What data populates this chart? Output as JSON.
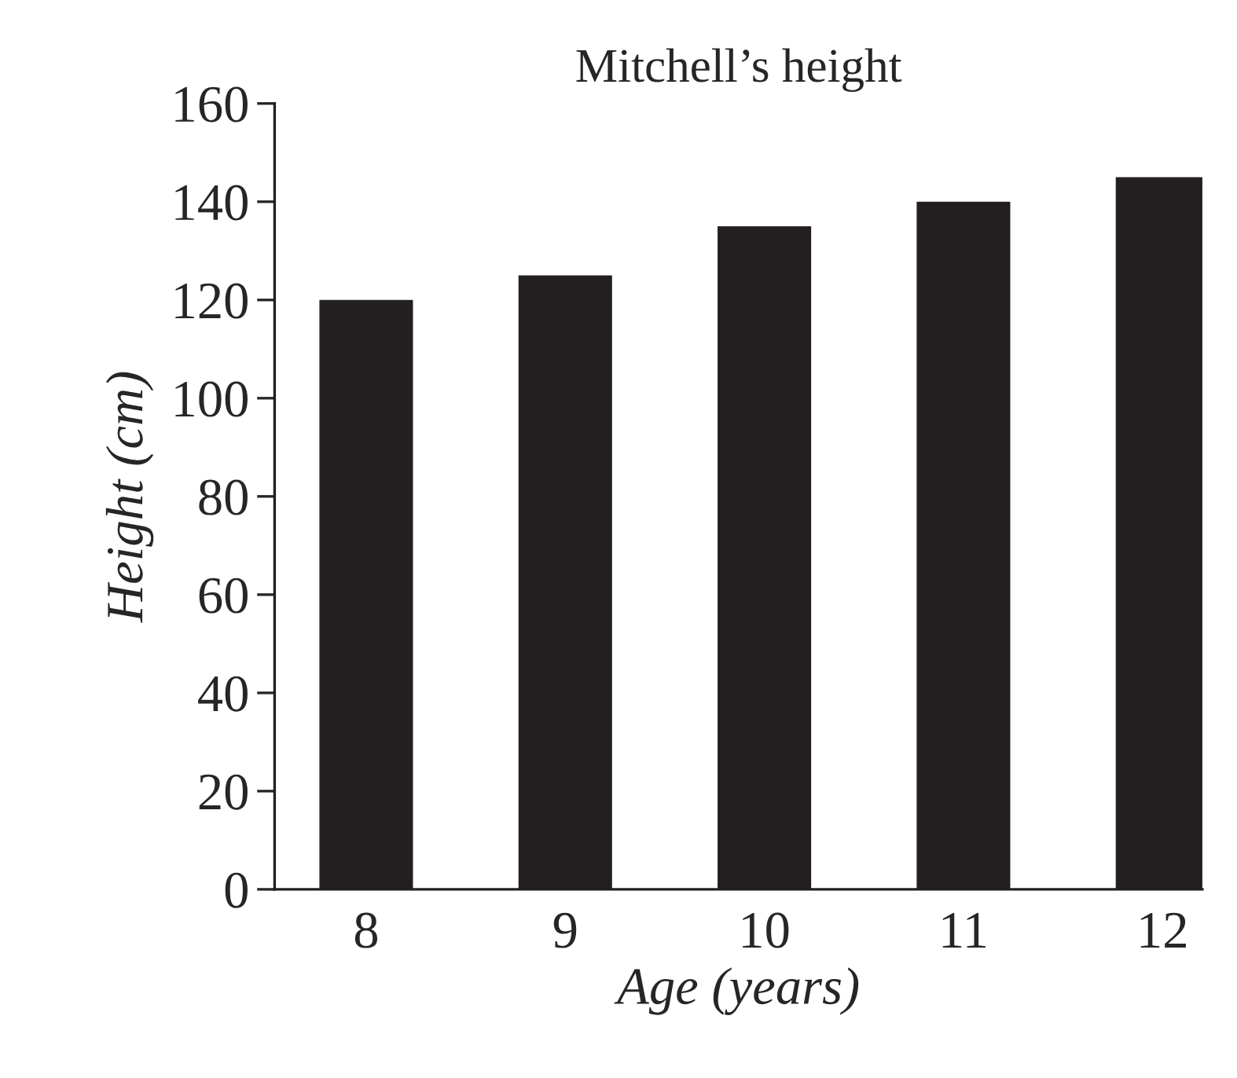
{
  "chart_data": {
    "type": "bar",
    "title": "Mitchell’s height",
    "xlabel": "Age (years)",
    "ylabel": "Height (cm)",
    "categories": [
      "8",
      "9",
      "10",
      "11",
      "12"
    ],
    "values": [
      120,
      125,
      135,
      140,
      145
    ],
    "color": "#231f20",
    "ylim": [
      0,
      160
    ],
    "yticks": [
      0,
      20,
      40,
      60,
      80,
      100,
      120,
      140,
      160
    ],
    "grid": false,
    "legend": false
  }
}
